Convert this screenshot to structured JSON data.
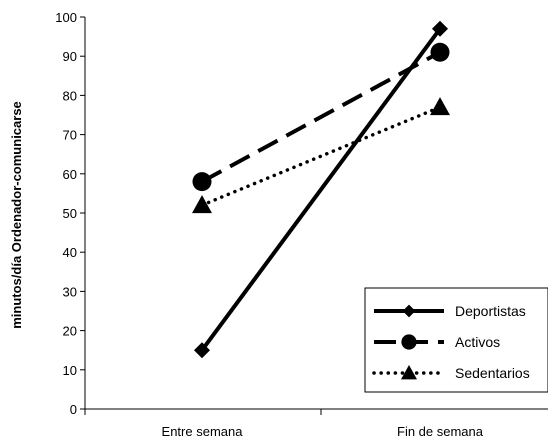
{
  "chart_data": {
    "type": "line",
    "categories": [
      "Entre semana",
      "Fin de semana"
    ],
    "ylabel": "minutos/día Ordenador-comunicarse",
    "ylim": [
      0,
      100
    ],
    "yticks": [
      0,
      10,
      20,
      30,
      40,
      50,
      60,
      70,
      80,
      90,
      100
    ],
    "grid": false,
    "legend_position": "bottom-right",
    "series": [
      {
        "name": "Deportistas",
        "values": [
          15,
          97
        ],
        "style": "solid",
        "marker": "diamond"
      },
      {
        "name": "Activos",
        "values": [
          58,
          91
        ],
        "style": "dashed",
        "marker": "circle"
      },
      {
        "name": "Sedentarios",
        "values": [
          52,
          77
        ],
        "style": "dotted",
        "marker": "triangle"
      }
    ]
  }
}
